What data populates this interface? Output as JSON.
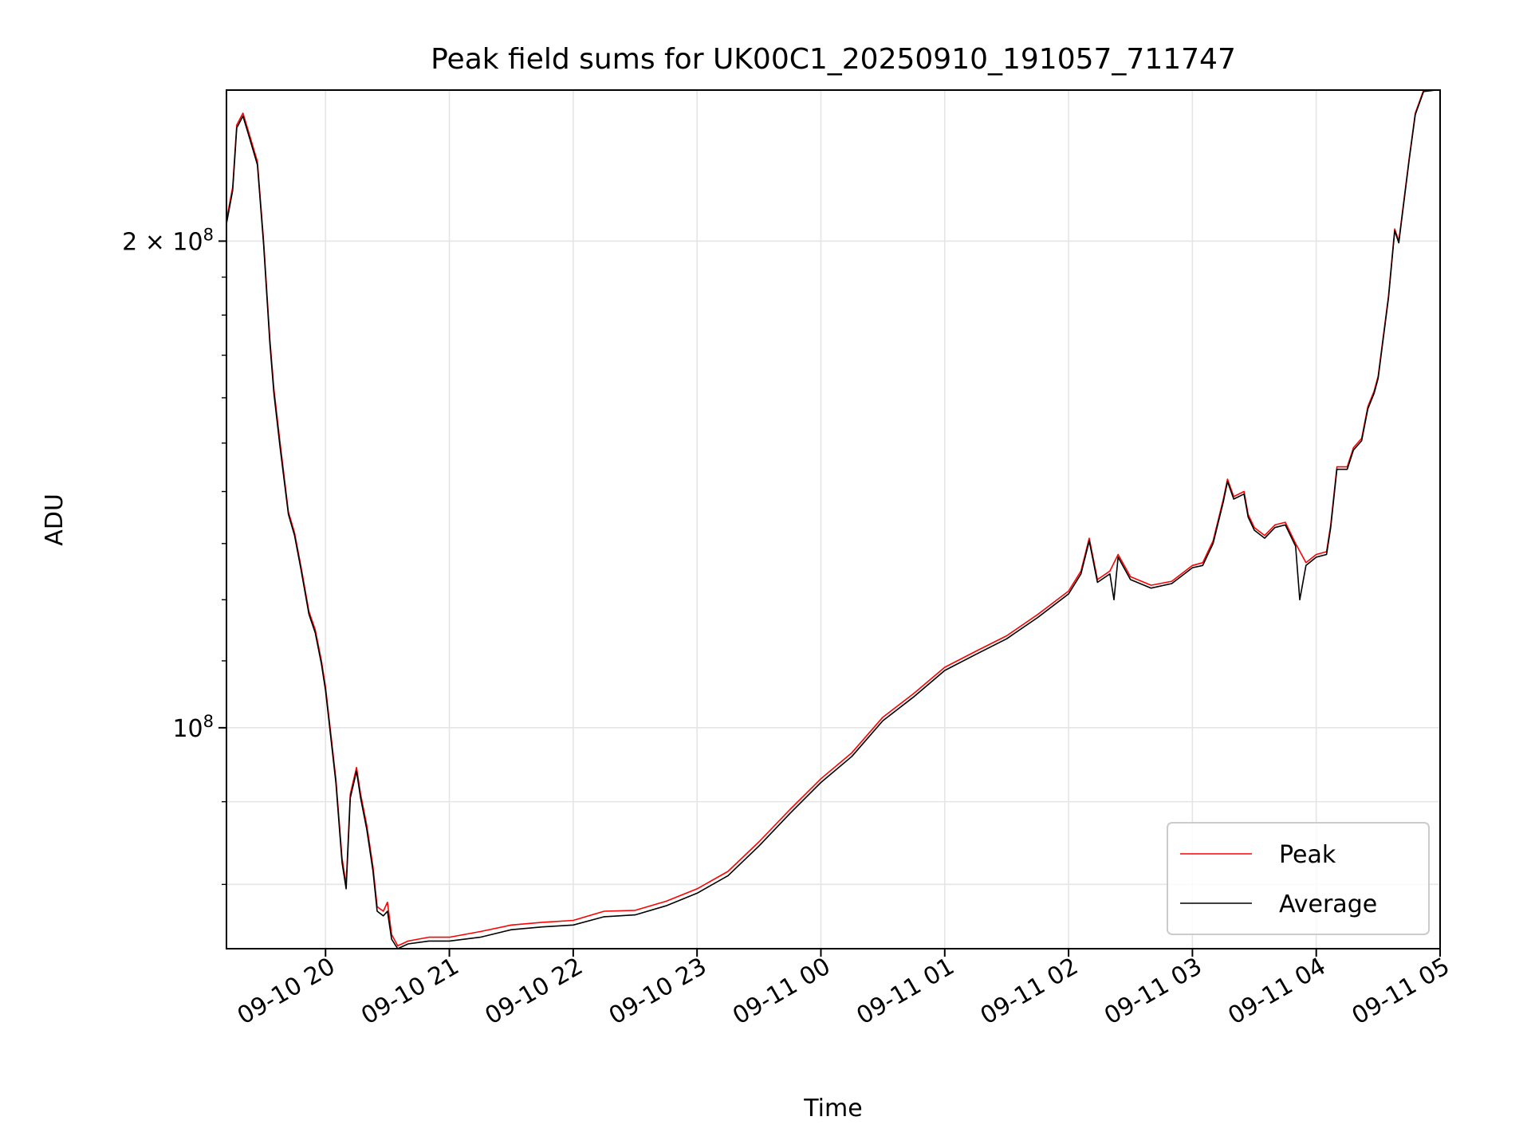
{
  "chart_data": {
    "type": "line",
    "title": "Peak field sums for UK00C1_20250910_191057_711747",
    "xlabel": "Time",
    "ylabel": "ADU",
    "y_scale": "log",
    "ylim": [
      73000000,
      248000000
    ],
    "xlim": [
      "2025-09-10T19:12",
      "2025-09-11T05:00"
    ],
    "x_ticks": [
      {
        "t": "2025-09-10T20:00",
        "label": "09-10 20"
      },
      {
        "t": "2025-09-10T21:00",
        "label": "09-10 21"
      },
      {
        "t": "2025-09-10T22:00",
        "label": "09-10 22"
      },
      {
        "t": "2025-09-10T23:00",
        "label": "09-10 23"
      },
      {
        "t": "2025-09-11T00:00",
        "label": "09-11 00"
      },
      {
        "t": "2025-09-11T01:00",
        "label": "09-11 01"
      },
      {
        "t": "2025-09-11T02:00",
        "label": "09-11 02"
      },
      {
        "t": "2025-09-11T03:00",
        "label": "09-11 03"
      },
      {
        "t": "2025-09-11T04:00",
        "label": "09-11 04"
      },
      {
        "t": "2025-09-11T05:00",
        "label": "09-11 05"
      }
    ],
    "y_major_ticks": [
      {
        "v": 100000000,
        "base": "10",
        "exp": "8",
        "mant": ""
      },
      {
        "v": 200000000,
        "base": "10",
        "exp": "8",
        "mant": "2 × "
      }
    ],
    "y_minor_ticks": [
      80000000,
      90000000,
      110000000,
      120000000,
      130000000,
      140000000,
      150000000,
      160000000,
      170000000,
      180000000,
      190000000
    ],
    "y_minor_grid": [
      80000000,
      90000000
    ],
    "grid": true,
    "legend_position": "lower-right",
    "series": [
      {
        "name": "Peak",
        "color": "#ff0000",
        "points": [
          [
            "2025-09-10T19:12",
            206000000
          ],
          [
            "2025-09-10T19:15",
            216000000
          ],
          [
            "2025-09-10T19:17",
            236000000
          ],
          [
            "2025-09-10T19:20",
            240000000
          ],
          [
            "2025-09-10T19:23",
            233000000
          ],
          [
            "2025-09-10T19:27",
            224000000
          ],
          [
            "2025-09-10T19:30",
            200000000
          ],
          [
            "2025-09-10T19:33",
            174000000
          ],
          [
            "2025-09-10T19:35",
            162000000
          ],
          [
            "2025-09-10T19:38",
            150000000
          ],
          [
            "2025-09-10T19:42",
            136000000
          ],
          [
            "2025-09-10T19:45",
            132000000
          ],
          [
            "2025-09-10T19:48",
            126000000
          ],
          [
            "2025-09-10T19:52",
            118000000
          ],
          [
            "2025-09-10T19:55",
            115000000
          ],
          [
            "2025-09-10T19:58",
            110000000
          ],
          [
            "2025-09-10T20:00",
            106000000
          ],
          [
            "2025-09-10T20:03",
            98000000
          ],
          [
            "2025-09-10T20:05",
            93000000
          ],
          [
            "2025-09-10T20:08",
            83000000
          ],
          [
            "2025-09-10T20:10",
            80000000
          ],
          [
            "2025-09-10T20:12",
            91000000
          ],
          [
            "2025-09-10T20:15",
            94500000
          ],
          [
            "2025-09-10T20:17",
            91000000
          ],
          [
            "2025-09-10T20:20",
            87000000
          ],
          [
            "2025-09-10T20:23",
            82000000
          ],
          [
            "2025-09-10T20:25",
            77500000
          ],
          [
            "2025-09-10T20:28",
            77000000
          ],
          [
            "2025-09-10T20:30",
            78000000
          ],
          [
            "2025-09-10T20:32",
            74500000
          ],
          [
            "2025-09-10T20:35",
            73300000
          ],
          [
            "2025-09-10T20:40",
            73800000
          ],
          [
            "2025-09-10T20:50",
            74200000
          ],
          [
            "2025-09-10T21:00",
            74200000
          ],
          [
            "2025-09-10T21:15",
            74800000
          ],
          [
            "2025-09-10T21:30",
            75500000
          ],
          [
            "2025-09-10T21:45",
            75800000
          ],
          [
            "2025-09-10T22:00",
            76000000
          ],
          [
            "2025-09-10T22:15",
            77000000
          ],
          [
            "2025-09-10T22:30",
            77100000
          ],
          [
            "2025-09-10T22:45",
            78100000
          ],
          [
            "2025-09-10T23:00",
            79500000
          ],
          [
            "2025-09-10T23:15",
            81500000
          ],
          [
            "2025-09-10T23:30",
            85000000
          ],
          [
            "2025-09-10T23:45",
            89000000
          ],
          [
            "2025-09-11T00:00",
            93000000
          ],
          [
            "2025-09-11T00:15",
            96500000
          ],
          [
            "2025-09-11T00:30",
            101500000
          ],
          [
            "2025-09-11T00:45",
            105000000
          ],
          [
            "2025-09-11T01:00",
            109000000
          ],
          [
            "2025-09-11T01:15",
            111500000
          ],
          [
            "2025-09-11T01:30",
            114000000
          ],
          [
            "2025-09-11T01:45",
            117500000
          ],
          [
            "2025-09-11T02:00",
            121500000
          ],
          [
            "2025-09-11T02:06",
            125000000
          ],
          [
            "2025-09-11T02:10",
            131000000
          ],
          [
            "2025-09-11T02:14",
            123500000
          ],
          [
            "2025-09-11T02:20",
            125000000
          ],
          [
            "2025-09-11T02:24",
            128000000
          ],
          [
            "2025-09-11T02:30",
            124000000
          ],
          [
            "2025-09-11T02:40",
            122500000
          ],
          [
            "2025-09-11T02:50",
            123200000
          ],
          [
            "2025-09-11T03:00",
            126000000
          ],
          [
            "2025-09-11T03:05",
            126500000
          ],
          [
            "2025-09-11T03:10",
            130500000
          ],
          [
            "2025-09-11T03:15",
            138500000
          ],
          [
            "2025-09-11T03:17",
            142500000
          ],
          [
            "2025-09-11T03:20",
            139000000
          ],
          [
            "2025-09-11T03:25",
            140000000
          ],
          [
            "2025-09-11T03:27",
            135500000
          ],
          [
            "2025-09-11T03:30",
            133000000
          ],
          [
            "2025-09-11T03:35",
            131500000
          ],
          [
            "2025-09-11T03:40",
            133500000
          ],
          [
            "2025-09-11T03:45",
            134000000
          ],
          [
            "2025-09-11T03:50",
            130000000
          ],
          [
            "2025-09-11T03:55",
            126500000
          ],
          [
            "2025-09-11T04:00",
            128000000
          ],
          [
            "2025-09-11T04:05",
            128500000
          ],
          [
            "2025-09-11T04:07",
            133500000
          ],
          [
            "2025-09-11T04:10",
            145000000
          ],
          [
            "2025-09-11T04:15",
            145000000
          ],
          [
            "2025-09-11T04:18",
            149000000
          ],
          [
            "2025-09-11T04:22",
            151000000
          ],
          [
            "2025-09-11T04:25",
            158000000
          ],
          [
            "2025-09-11T04:28",
            161500000
          ],
          [
            "2025-09-11T04:30",
            165000000
          ],
          [
            "2025-09-11T04:35",
            185000000
          ],
          [
            "2025-09-11T04:38",
            203500000
          ],
          [
            "2025-09-11T04:40",
            200000000
          ],
          [
            "2025-09-11T04:45",
            225000000
          ],
          [
            "2025-09-11T04:48",
            240000000
          ],
          [
            "2025-09-11T04:52",
            248000000
          ],
          [
            "2025-09-11T04:58",
            248000000
          ]
        ]
      },
      {
        "name": "Average",
        "color": "#000000",
        "points": [
          [
            "2025-09-10T19:12",
            205000000
          ],
          [
            "2025-09-10T19:15",
            215000000
          ],
          [
            "2025-09-10T19:17",
            235000000
          ],
          [
            "2025-09-10T19:20",
            239000000
          ],
          [
            "2025-09-10T19:23",
            232000000
          ],
          [
            "2025-09-10T19:27",
            223000000
          ],
          [
            "2025-09-10T19:30",
            199000000
          ],
          [
            "2025-09-10T19:33",
            173000000
          ],
          [
            "2025-09-10T19:35",
            161000000
          ],
          [
            "2025-09-10T19:38",
            149000000
          ],
          [
            "2025-09-10T19:42",
            135500000
          ],
          [
            "2025-09-10T19:45",
            131500000
          ],
          [
            "2025-09-10T19:48",
            125500000
          ],
          [
            "2025-09-10T19:52",
            117500000
          ],
          [
            "2025-09-10T19:55",
            114500000
          ],
          [
            "2025-09-10T19:58",
            109500000
          ],
          [
            "2025-09-10T20:00",
            105500000
          ],
          [
            "2025-09-10T20:03",
            97500000
          ],
          [
            "2025-09-10T20:05",
            92500000
          ],
          [
            "2025-09-10T20:08",
            82500000
          ],
          [
            "2025-09-10T20:10",
            79500000
          ],
          [
            "2025-09-10T20:12",
            90500000
          ],
          [
            "2025-09-10T20:15",
            94000000
          ],
          [
            "2025-09-10T20:17",
            90500000
          ],
          [
            "2025-09-10T20:20",
            86500000
          ],
          [
            "2025-09-10T20:23",
            81500000
          ],
          [
            "2025-09-10T20:25",
            77000000
          ],
          [
            "2025-09-10T20:28",
            76500000
          ],
          [
            "2025-09-10T20:30",
            77000000
          ],
          [
            "2025-09-10T20:32",
            74000000
          ],
          [
            "2025-09-10T20:35",
            73000000
          ],
          [
            "2025-09-10T20:40",
            73500000
          ],
          [
            "2025-09-10T20:50",
            73800000
          ],
          [
            "2025-09-10T21:00",
            73800000
          ],
          [
            "2025-09-10T21:15",
            74200000
          ],
          [
            "2025-09-10T21:30",
            75000000
          ],
          [
            "2025-09-10T21:45",
            75300000
          ],
          [
            "2025-09-10T22:00",
            75500000
          ],
          [
            "2025-09-10T22:15",
            76400000
          ],
          [
            "2025-09-10T22:30",
            76600000
          ],
          [
            "2025-09-10T22:45",
            77600000
          ],
          [
            "2025-09-10T23:00",
            79000000
          ],
          [
            "2025-09-10T23:15",
            81000000
          ],
          [
            "2025-09-10T23:30",
            84500000
          ],
          [
            "2025-09-10T23:45",
            88500000
          ],
          [
            "2025-09-11T00:00",
            92500000
          ],
          [
            "2025-09-11T00:15",
            96000000
          ],
          [
            "2025-09-11T00:30",
            101000000
          ],
          [
            "2025-09-11T00:45",
            104500000
          ],
          [
            "2025-09-11T01:00",
            108500000
          ],
          [
            "2025-09-11T01:15",
            111000000
          ],
          [
            "2025-09-11T01:30",
            113500000
          ],
          [
            "2025-09-11T01:45",
            117000000
          ],
          [
            "2025-09-11T02:00",
            121000000
          ],
          [
            "2025-09-11T02:06",
            124500000
          ],
          [
            "2025-09-11T02:10",
            130500000
          ],
          [
            "2025-09-11T02:14",
            123000000
          ],
          [
            "2025-09-11T02:20",
            124500000
          ],
          [
            "2025-09-11T02:22",
            120000000
          ],
          [
            "2025-09-11T02:24",
            127500000
          ],
          [
            "2025-09-11T02:30",
            123500000
          ],
          [
            "2025-09-11T02:40",
            122000000
          ],
          [
            "2025-09-11T02:50",
            122800000
          ],
          [
            "2025-09-11T03:00",
            125600000
          ],
          [
            "2025-09-11T03:05",
            126000000
          ],
          [
            "2025-09-11T03:10",
            130000000
          ],
          [
            "2025-09-11T03:15",
            138000000
          ],
          [
            "2025-09-11T03:17",
            142000000
          ],
          [
            "2025-09-11T03:20",
            138500000
          ],
          [
            "2025-09-11T03:25",
            139500000
          ],
          [
            "2025-09-11T03:27",
            135000000
          ],
          [
            "2025-09-11T03:30",
            132500000
          ],
          [
            "2025-09-11T03:35",
            131000000
          ],
          [
            "2025-09-11T03:40",
            133000000
          ],
          [
            "2025-09-11T03:45",
            133500000
          ],
          [
            "2025-09-11T03:50",
            129500000
          ],
          [
            "2025-09-11T03:52",
            120000000
          ],
          [
            "2025-09-11T03:55",
            126000000
          ],
          [
            "2025-09-11T04:00",
            127500000
          ],
          [
            "2025-09-11T04:05",
            128000000
          ],
          [
            "2025-09-11T04:07",
            133000000
          ],
          [
            "2025-09-11T04:10",
            144500000
          ],
          [
            "2025-09-11T04:15",
            144500000
          ],
          [
            "2025-09-11T04:18",
            148500000
          ],
          [
            "2025-09-11T04:22",
            150500000
          ],
          [
            "2025-09-11T04:25",
            157500000
          ],
          [
            "2025-09-11T04:28",
            161000000
          ],
          [
            "2025-09-11T04:30",
            164500000
          ],
          [
            "2025-09-11T04:35",
            184500000
          ],
          [
            "2025-09-11T04:38",
            203000000
          ],
          [
            "2025-09-11T04:40",
            199500000
          ],
          [
            "2025-09-11T04:45",
            224500000
          ],
          [
            "2025-09-11T04:48",
            239500000
          ],
          [
            "2025-09-11T04:52",
            247500000
          ],
          [
            "2025-09-11T04:58",
            248000000
          ]
        ]
      }
    ]
  }
}
